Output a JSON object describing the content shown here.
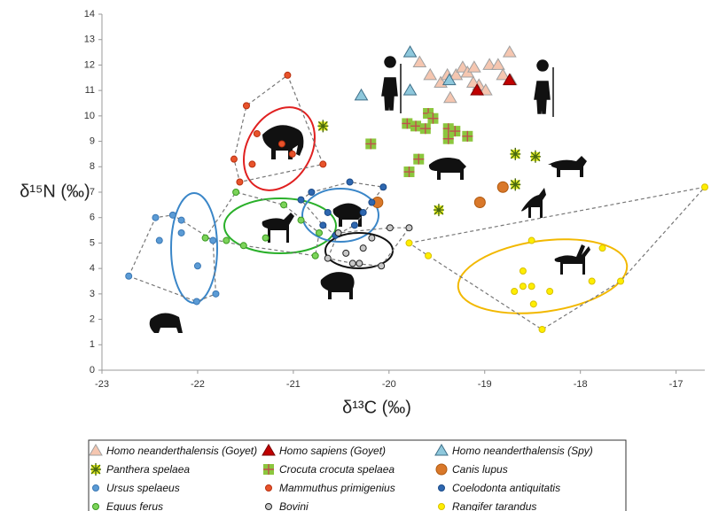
{
  "chart_data": {
    "type": "scatter",
    "x_label": "δ¹³C (‰)",
    "y_label": "δ¹⁵N (‰)",
    "xlim": [
      -23,
      -16.7
    ],
    "xticks": [
      -23,
      -22,
      -21,
      -20,
      -19,
      -18,
      -17
    ],
    "ylim": [
      0,
      14
    ],
    "yticks": [
      0,
      1,
      2,
      3,
      4,
      5,
      6,
      7,
      8,
      9,
      10,
      11,
      12,
      13,
      14
    ],
    "grid": false,
    "series": [
      {
        "name": "Homo neanderthalensis (Goyet)",
        "color": "#f5c6b0",
        "stroke": "#a0a0a0",
        "marker": "triangle",
        "x": [
          -19.68,
          -19.57,
          -19.46,
          -19.39,
          -19.3,
          -19.23,
          -19.18,
          -19.11,
          -19.06,
          -18.99,
          -18.95,
          -18.86,
          -18.81,
          -18.74,
          -18.73,
          -19.36,
          -19.12
        ],
        "values": [
          12.1,
          11.6,
          11.3,
          11.6,
          11.6,
          11.9,
          11.7,
          11.9,
          11.2,
          11.0,
          12.0,
          12.0,
          11.6,
          12.5,
          11.4,
          10.7,
          11.3
        ]
      },
      {
        "name": "Homo sapiens (Goyet)",
        "color": "#c00000",
        "stroke": "#7a0000",
        "marker": "triangle",
        "x": [
          -19.08,
          -18.74
        ],
        "values": [
          11.0,
          11.4
        ]
      },
      {
        "name": "Homo neanderthalensis (Spy)",
        "color": "#8ec8dc",
        "stroke": "#3f6f88",
        "marker": "triangle",
        "x": [
          -19.78,
          -20.29,
          -19.78,
          -19.37
        ],
        "values": [
          12.5,
          10.8,
          11.0,
          11.4
        ]
      },
      {
        "name": "Panthera spelaea",
        "color": "#e8f028",
        "stroke": "#4a6a10",
        "marker": "star",
        "x": [
          -20.69,
          -18.68,
          -18.47,
          -18.68,
          -19.48
        ],
        "values": [
          9.6,
          8.5,
          8.4,
          7.3,
          6.3
        ]
      },
      {
        "name": "Crocuta crocuta spelaea",
        "color": "#8cc63e",
        "stroke": "#c0504d",
        "marker": "plus",
        "x": [
          -19.81,
          -19.72,
          -19.62,
          -19.59,
          -19.54,
          -19.38,
          -19.31,
          -19.38,
          -19.18,
          -20.19,
          -19.69,
          -19.79
        ],
        "values": [
          9.7,
          9.6,
          9.5,
          10.1,
          9.9,
          9.5,
          9.4,
          9.1,
          9.2,
          8.9,
          8.3,
          7.8
        ]
      },
      {
        "name": "Canis lupus",
        "color": "#d9782a",
        "stroke": "#b05a10",
        "marker": "circle",
        "size": 6,
        "x": [
          -20.12,
          -19.05,
          -18.81
        ],
        "values": [
          6.6,
          6.6,
          7.2
        ]
      },
      {
        "name": "Ursus spelaeus",
        "color": "#5b9bd5",
        "stroke": "#3a78b5",
        "marker": "circle",
        "hull": true,
        "x": [
          -22.72,
          -22.44,
          -22.26,
          -22.17,
          -22.4,
          -22.01,
          -21.81,
          -21.84,
          -22.0,
          -22.17
        ],
        "values": [
          3.7,
          6.0,
          6.1,
          5.9,
          5.1,
          2.7,
          3.0,
          5.1,
          4.1,
          5.4
        ]
      },
      {
        "name": "Mammuthus primigenius",
        "color": "#e8532b",
        "stroke": "#b83010",
        "marker": "circle",
        "hull": true,
        "x": [
          -21.06,
          -21.49,
          -21.62,
          -21.56,
          -21.43,
          -21.12,
          -21.01,
          -20.69,
          -21.38
        ],
        "values": [
          11.6,
          10.4,
          8.3,
          7.4,
          8.1,
          8.9,
          8.5,
          8.1,
          9.3
        ]
      },
      {
        "name": "Coelodonta antiquitatis",
        "color": "#2e67b0",
        "stroke": "#1a4a88",
        "marker": "circle",
        "hull": true,
        "x": [
          -20.92,
          -20.81,
          -20.64,
          -20.56,
          -20.41,
          -20.27,
          -20.18,
          -20.06,
          -20.69,
          -20.36
        ],
        "values": [
          6.7,
          7.0,
          6.2,
          5.3,
          7.4,
          6.2,
          6.6,
          7.2,
          5.7,
          5.7
        ]
      },
      {
        "name": "Equus ferus",
        "color": "#7cd35a",
        "stroke": "#3a9a20",
        "marker": "circle",
        "hull": true,
        "x": [
          -21.6,
          -21.7,
          -21.52,
          -21.1,
          -20.92,
          -20.73,
          -20.77,
          -21.29,
          -21.92
        ],
        "values": [
          7.0,
          5.1,
          4.9,
          6.5,
          5.9,
          5.4,
          4.5,
          5.2,
          5.2
        ]
      },
      {
        "name": "Bovini",
        "color": "#c8c8c8",
        "stroke": "#222222",
        "marker": "circle",
        "hull": true,
        "x": [
          -20.53,
          -20.45,
          -20.38,
          -20.27,
          -20.18,
          -20.08,
          -19.99,
          -19.79,
          -20.64,
          -20.31
        ],
        "values": [
          5.4,
          4.6,
          4.2,
          4.8,
          5.2,
          4.1,
          5.6,
          5.6,
          4.4,
          4.2
        ]
      },
      {
        "name": "Rangifer tarandus",
        "color": "#ffee00",
        "stroke": "#d8c000",
        "marker": "circle",
        "hull": true,
        "x": [
          -16.7,
          -19.79,
          -19.59,
          -18.51,
          -18.6,
          -18.69,
          -18.6,
          -18.51,
          -18.4,
          -18.32,
          -17.77,
          -17.88,
          -17.58,
          -18.49
        ],
        "values": [
          7.2,
          5.0,
          4.5,
          5.1,
          3.9,
          3.1,
          3.3,
          3.3,
          1.6,
          3.1,
          4.8,
          3.5,
          3.5,
          2.6
        ]
      }
    ]
  }
}
